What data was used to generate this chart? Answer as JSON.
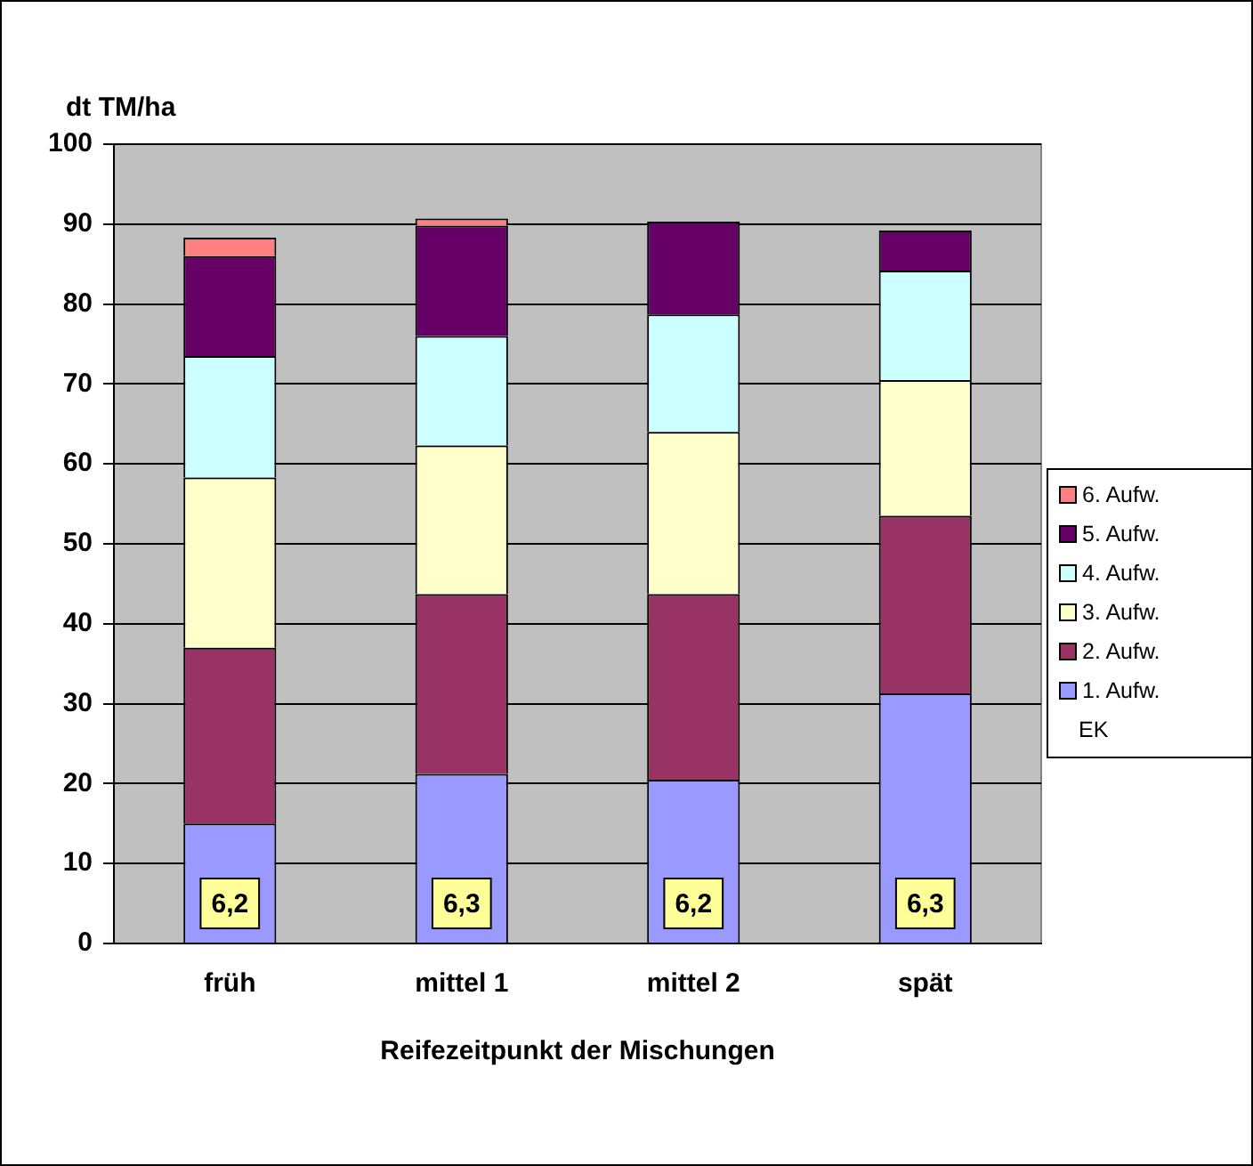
{
  "chart_data": {
    "type": "bar",
    "stacked": true,
    "ylabel": "dt TM/ha",
    "xlabel": "Reifezeitpunkt der Mischungen",
    "categories": [
      "früh",
      "mittel 1",
      "mittel 2",
      "spät"
    ],
    "ylim": [
      0,
      100
    ],
    "yticks": [
      0,
      10,
      20,
      30,
      40,
      50,
      60,
      70,
      80,
      90,
      100
    ],
    "grid": "y",
    "legend": "right",
    "series": [
      {
        "name": "1. Aufw.",
        "color": "#9999ff",
        "values": [
          15,
          21.2,
          20.5,
          31.3
        ]
      },
      {
        "name": "2. Aufw.",
        "color": "#993366",
        "values": [
          22,
          22.5,
          23.2,
          22.2
        ]
      },
      {
        "name": "3. Aufw.",
        "color": "#ffffcc",
        "values": [
          21.3,
          18.6,
          20.3,
          17
        ]
      },
      {
        "name": "4. Aufw.",
        "color": "#ccffff",
        "values": [
          15.2,
          13.7,
          14.7,
          13.7
        ]
      },
      {
        "name": "5. Aufw.",
        "color": "#660066",
        "values": [
          12.5,
          13.8,
          11.6,
          5
        ]
      },
      {
        "name": "6. Aufw.",
        "color": "#ff8080",
        "values": [
          2.3,
          0.9,
          null,
          null
        ]
      }
    ],
    "annotations": [
      "EK",
      {
        "text": "6,2",
        "x": "früh",
        "y": 5
      },
      {
        "text": "6,3",
        "x": "mittel 1",
        "y": 5
      },
      {
        "text": "6,2",
        "x": "mittel 2",
        "y": 5
      },
      {
        "text": "6,3",
        "x": "spät",
        "y": 5
      }
    ]
  }
}
